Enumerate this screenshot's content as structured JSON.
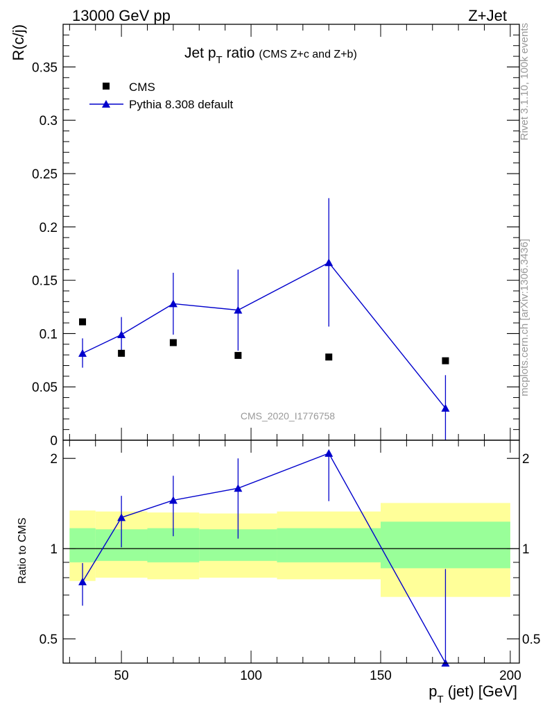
{
  "header": {
    "left": "13000 GeV pp",
    "right": "Z+Jet"
  },
  "side": {
    "rivet": "Rivet 3.1.10,  100k events",
    "mcplots": "mcplots.cern.ch [arXiv:1306.3436]"
  },
  "chart_data": {
    "type": "scatter",
    "main": {
      "title_main": "Jet p",
      "title_sub": "T",
      "title_ratio": " ratio",
      "title_paren": "(CMS  Z+c and Z+b)",
      "ylabel": "R(c/j)",
      "analysis_tag": "CMS_2020_I1776758",
      "ylim": [
        0,
        0.39
      ],
      "yticks": [
        0,
        0.05,
        0.1,
        0.15,
        0.2,
        0.25,
        0.3,
        0.35
      ],
      "ytick_labels": [
        "0",
        "0.05",
        "0.1",
        "0.15",
        "0.2",
        "0.25",
        "0.3",
        "0.35"
      ],
      "legend_position": "top-left",
      "series": [
        {
          "name": "CMS",
          "marker": "square",
          "color": "#000000",
          "x": [
            35,
            50,
            70,
            95,
            130,
            175
          ],
          "y": [
            0.111,
            0.0815,
            0.0915,
            0.0795,
            0.078,
            0.0745
          ]
        },
        {
          "name": "Pythia 8.308 default",
          "marker": "triangle",
          "color": "#0000cc",
          "x": [
            35,
            50,
            70,
            95,
            130,
            175
          ],
          "y": [
            0.0815,
            0.099,
            0.128,
            0.122,
            0.1665,
            0.03
          ],
          "err_low": [
            0.068,
            0.082,
            0.099,
            0.084,
            0.1065,
            0.0
          ],
          "err_high": [
            0.0955,
            0.1155,
            0.157,
            0.16,
            0.227,
            0.061
          ]
        }
      ]
    },
    "ratio": {
      "ylabel": "Ratio to CMS",
      "ylim": [
        0.415,
        2.3
      ],
      "log": true,
      "yticks": [
        0.5,
        1,
        2
      ],
      "ytick_labels": [
        "0.5",
        "1",
        "2"
      ],
      "reference": 1,
      "bands": [
        {
          "x0": 30,
          "x1": 40,
          "inner": [
            0.9,
            1.17
          ],
          "outer": [
            0.78,
            1.34
          ]
        },
        {
          "x0": 40,
          "x1": 60,
          "inner": [
            0.91,
            1.16
          ],
          "outer": [
            0.8,
            1.33
          ]
        },
        {
          "x0": 60,
          "x1": 80,
          "inner": [
            0.9,
            1.17
          ],
          "outer": [
            0.79,
            1.32
          ]
        },
        {
          "x0": 80,
          "x1": 110,
          "inner": [
            0.91,
            1.16
          ],
          "outer": [
            0.8,
            1.31
          ]
        },
        {
          "x0": 110,
          "x1": 150,
          "inner": [
            0.9,
            1.17
          ],
          "outer": [
            0.79,
            1.33
          ]
        },
        {
          "x0": 150,
          "x1": 200,
          "inner": [
            0.86,
            1.23
          ],
          "outer": [
            0.69,
            1.42
          ]
        }
      ],
      "series": {
        "name": "Pythia 8.308 default",
        "color": "#0000cc",
        "x": [
          35,
          50,
          70,
          95,
          130,
          175
        ],
        "y": [
          0.775,
          1.27,
          1.45,
          1.59,
          2.08,
          0.4
        ],
        "err_low": [
          0.645,
          1.01,
          1.1,
          1.08,
          1.44,
          0.4
        ],
        "err_high": [
          0.895,
          1.5,
          1.75,
          2.0,
          2.08,
          0.855
        ]
      },
      "band_colors": {
        "inner": "#99ff99",
        "outer": "#ffff99"
      }
    },
    "x_axis": {
      "label": "p",
      "label_sub": "T",
      "label_rest": " (jet) [GeV]",
      "xlim": [
        27.5,
        203.5
      ],
      "xticks": [
        50,
        100,
        150,
        200
      ],
      "xtick_labels": [
        "50",
        "100",
        "150",
        "200"
      ]
    }
  }
}
